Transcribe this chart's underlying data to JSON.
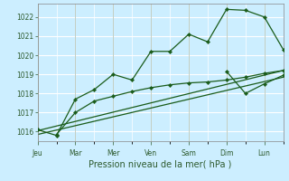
{
  "xlabel": "Pression niveau de la mer( hPa )",
  "background_color": "#cceeff",
  "grid_color": "#ffffff",
  "line_color": "#1a5c1a",
  "ylim": [
    1015.5,
    1022.7
  ],
  "yticks": [
    1016,
    1017,
    1018,
    1019,
    1020,
    1021,
    1022
  ],
  "day_labels": [
    "Jeu",
    "Mar",
    "Mer",
    "Ven",
    "Sam",
    "Dim",
    "Lun"
  ],
  "day_positions": [
    0,
    2,
    4,
    6,
    8,
    10,
    12
  ],
  "series1_x": [
    0,
    1,
    2,
    3,
    4,
    5,
    6,
    7,
    8,
    9,
    10,
    11,
    12,
    13
  ],
  "series1_y": [
    1016.1,
    1015.8,
    1017.7,
    1018.2,
    1019.0,
    1018.7,
    1020.2,
    1020.2,
    1021.1,
    1020.7,
    1022.4,
    1022.35,
    1022.0,
    1020.3
  ],
  "series2_x": [
    1,
    2,
    3,
    4,
    5,
    6,
    7,
    8,
    9,
    10,
    11,
    12,
    13
  ],
  "series2_y": [
    1015.85,
    1017.0,
    1017.6,
    1017.85,
    1018.1,
    1018.3,
    1018.45,
    1018.55,
    1018.6,
    1018.7,
    1018.85,
    1019.05,
    1019.2
  ],
  "series3_x": [
    0,
    13
  ],
  "series3_y": [
    1016.05,
    1019.2
  ],
  "series4_x": [
    0,
    13
  ],
  "series4_y": [
    1015.85,
    1018.85
  ],
  "series5_x": [
    10,
    11,
    12,
    13
  ],
  "series5_y": [
    1019.15,
    1018.0,
    1018.5,
    1018.95
  ],
  "xlim": [
    0,
    13
  ],
  "ylabel_fontsize": 5.5,
  "xlabel_fontsize": 7,
  "tick_fontsize": 5.5
}
